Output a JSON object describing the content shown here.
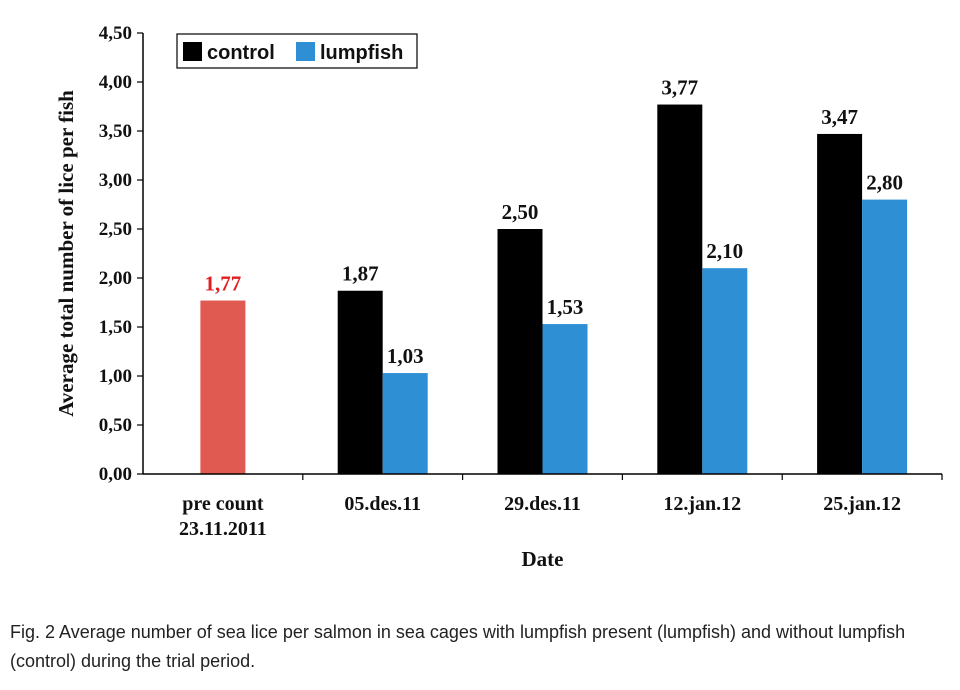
{
  "chart_data": {
    "type": "bar",
    "xlabel": "Date",
    "ylabel": "Average total number of lice per fish",
    "ylim": [
      0,
      4.5
    ],
    "yticks": [
      "0,00",
      "0,50",
      "1,00",
      "1,50",
      "2,00",
      "2,50",
      "3,00",
      "3,50",
      "4,00",
      "4,50"
    ],
    "categories": [
      [
        "pre count",
        "23.11.2011"
      ],
      [
        "05.des.11"
      ],
      [
        "29.des.11"
      ],
      [
        "12.jan.12"
      ],
      [
        "25.jan.12"
      ]
    ],
    "series": [
      {
        "name": "control",
        "color": "#000000",
        "values": [
          null,
          1.87,
          2.5,
          3.77,
          3.47
        ],
        "labels": [
          null,
          "1,87",
          "2,50",
          "3,77",
          "3,47"
        ]
      },
      {
        "name": "lumpfish",
        "color": "#2e8fd4",
        "values": [
          null,
          1.03,
          1.53,
          2.1,
          2.8
        ],
        "labels": [
          null,
          "1,03",
          "1,53",
          "2,10",
          "2,80"
        ]
      }
    ],
    "precount": {
      "value": 1.77,
      "label": "1,77",
      "color": "#e05a52",
      "label_color": "#e02020"
    },
    "legend": {
      "position": "top-left",
      "entries": [
        "control",
        "lumpfish"
      ]
    },
    "grid": false
  },
  "caption": "Fig. 2 Average number of sea lice per salmon in sea cages with lumpfish present (lumpfish) and without lumpfish (control) during the trial period."
}
